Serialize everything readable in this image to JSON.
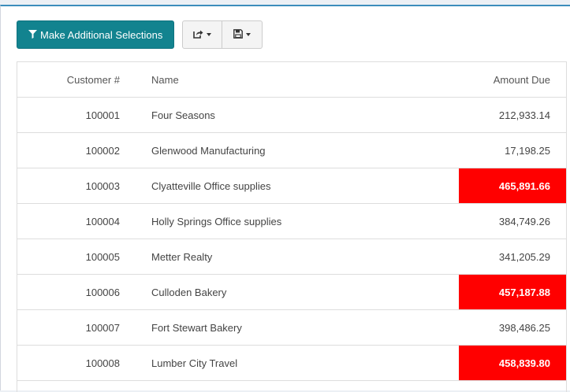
{
  "toolbar": {
    "selections_label": "Make Additional Selections",
    "colors": {
      "primary": "#12838f"
    }
  },
  "table": {
    "headers": {
      "customer": "Customer #",
      "name": "Name",
      "amount": "Amount Due"
    },
    "highlight_color": "#ff0000",
    "rows": [
      {
        "customer": "100001",
        "name": "Four Seasons",
        "amount": "212,933.14",
        "highlight": false
      },
      {
        "customer": "100002",
        "name": "Glenwood Manufacturing",
        "amount": "17,198.25",
        "highlight": false
      },
      {
        "customer": "100003",
        "name": "Clyatteville Office supplies",
        "amount": "465,891.66",
        "highlight": true
      },
      {
        "customer": "100004",
        "name": "Holly Springs Office supplies",
        "amount": "384,749.26",
        "highlight": false
      },
      {
        "customer": "100005",
        "name": "Metter Realty",
        "amount": "341,205.29",
        "highlight": false
      },
      {
        "customer": "100006",
        "name": "Culloden Bakery",
        "amount": "457,187.88",
        "highlight": true
      },
      {
        "customer": "100007",
        "name": "Fort Stewart Bakery",
        "amount": "398,486.25",
        "highlight": false
      },
      {
        "customer": "100008",
        "name": "Lumber City Travel",
        "amount": "458,839.80",
        "highlight": true
      }
    ]
  },
  "icons": {
    "filter": "filter-icon",
    "share": "share-icon",
    "save": "save-icon"
  }
}
